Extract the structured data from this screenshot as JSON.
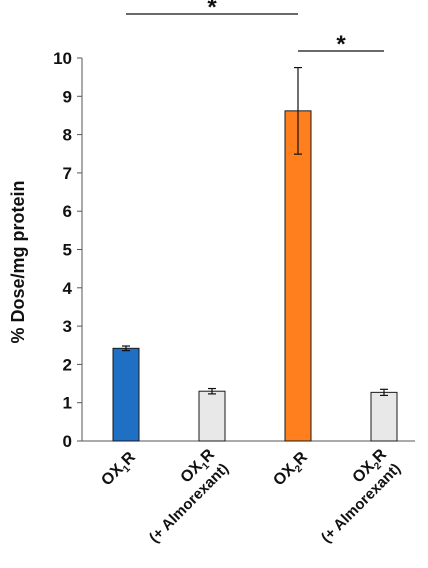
{
  "chart_data": {
    "type": "bar",
    "ylabel": "% Dose/mg protein",
    "ylim": [
      0,
      10
    ],
    "yticks": [
      0,
      1,
      2,
      3,
      4,
      5,
      6,
      7,
      8,
      9,
      10
    ],
    "grid": false,
    "categories": [
      {
        "main": "OX",
        "sub": "1",
        "tail": "R",
        "line2": ""
      },
      {
        "main": "OX",
        "sub": "1",
        "tail": "R",
        "line2": "(+ Almorexant)"
      },
      {
        "main": "OX",
        "sub": "2",
        "tail": "R",
        "line2": ""
      },
      {
        "main": "OX",
        "sub": "2",
        "tail": "R",
        "line2": "(+ Almorexant)"
      }
    ],
    "values": [
      2.42,
      1.3,
      8.62,
      1.27
    ],
    "errors": [
      0.06,
      0.07,
      1.13,
      0.08
    ],
    "colors": [
      "#1f6fc4",
      "#e8e8e8",
      "#ff7f1e",
      "#e8e8e8"
    ],
    "significance": [
      {
        "from": 0,
        "to": 2,
        "label": "*"
      },
      {
        "from": 2,
        "to": 3,
        "label": "*"
      }
    ]
  }
}
